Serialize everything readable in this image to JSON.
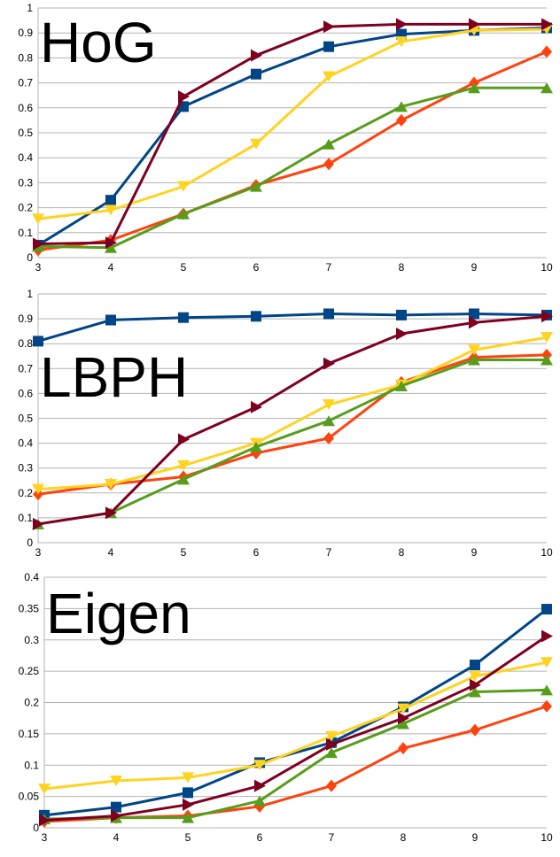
{
  "colors": {
    "blue": "#004586",
    "orange": "#ff420e",
    "yellow": "#ffd320",
    "green": "#579d1c",
    "maroon": "#7e0021",
    "grid": "#b3b3b3"
  },
  "chart_data": [
    {
      "type": "line",
      "title": "HoG",
      "x": [
        3,
        4,
        5,
        6,
        7,
        8,
        9,
        10
      ],
      "ylim": [
        0,
        1
      ],
      "yticks": [
        0,
        0.1,
        0.2,
        0.3,
        0.4,
        0.5,
        0.6,
        0.7,
        0.8,
        0.9,
        1
      ],
      "ytick_labels": [
        "0",
        "0.1",
        "0.2",
        "0.3",
        "0.4",
        "0.5",
        "0.6",
        "0.7",
        "0.8",
        "0.9",
        "1"
      ],
      "grid": true,
      "series": [
        {
          "color": "blue",
          "marker": "square",
          "values": [
            0.05,
            0.23,
            0.605,
            0.735,
            0.845,
            0.895,
            0.91,
            0.92
          ]
        },
        {
          "color": "orange",
          "marker": "diamond",
          "values": [
            0.03,
            0.07,
            0.175,
            0.29,
            0.375,
            0.55,
            0.7,
            0.825
          ]
        },
        {
          "color": "yellow",
          "marker": "triangle-down",
          "values": [
            0.155,
            0.19,
            0.285,
            0.455,
            0.725,
            0.865,
            0.91,
            0.915
          ]
        },
        {
          "color": "green",
          "marker": "triangle-up",
          "values": [
            0.045,
            0.04,
            0.175,
            0.285,
            0.455,
            0.605,
            0.68,
            0.68
          ]
        },
        {
          "color": "maroon",
          "marker": "triangle-right",
          "values": [
            0.055,
            0.06,
            0.645,
            0.81,
            0.925,
            0.935,
            0.935,
            0.935
          ]
        }
      ]
    },
    {
      "type": "line",
      "title": "LBPH",
      "x": [
        3,
        4,
        5,
        6,
        7,
        8,
        9,
        10
      ],
      "ylim": [
        0,
        1
      ],
      "yticks": [
        0,
        0.1,
        0.2,
        0.3,
        0.4,
        0.5,
        0.6,
        0.7,
        0.8,
        0.9,
        1
      ],
      "ytick_labels": [
        "0",
        "0.1",
        "0.2",
        "0.3",
        "0.4",
        "0.5",
        "0.6",
        "0.7",
        "0.8",
        "0.9",
        "1"
      ],
      "grid": true,
      "series": [
        {
          "color": "blue",
          "marker": "square",
          "values": [
            0.81,
            0.895,
            0.905,
            0.91,
            0.92,
            0.915,
            0.92,
            0.915
          ]
        },
        {
          "color": "orange",
          "marker": "diamond",
          "values": [
            0.195,
            0.235,
            0.265,
            0.36,
            0.42,
            0.645,
            0.745,
            0.755
          ]
        },
        {
          "color": "yellow",
          "marker": "triangle-down",
          "values": [
            0.215,
            0.235,
            0.31,
            0.4,
            0.555,
            0.635,
            0.775,
            0.825
          ]
        },
        {
          "color": "green",
          "marker": "triangle-up",
          "values": [
            0.075,
            0.12,
            0.255,
            0.385,
            0.49,
            0.63,
            0.735,
            0.735
          ]
        },
        {
          "color": "maroon",
          "marker": "triangle-right",
          "values": [
            0.075,
            0.12,
            0.415,
            0.545,
            0.72,
            0.84,
            0.885,
            0.91
          ]
        }
      ]
    },
    {
      "type": "line",
      "title": "Eigen",
      "x": [
        3,
        4,
        5,
        6,
        7,
        8,
        9,
        10
      ],
      "ylim": [
        0,
        0.4
      ],
      "yticks": [
        0,
        0.05,
        0.1,
        0.15,
        0.2,
        0.25,
        0.3,
        0.35,
        0.4
      ],
      "ytick_labels": [
        "0",
        "0.05",
        "0.1",
        "0.15",
        "0.2",
        "0.25",
        "0.3",
        "0.35",
        "0.4"
      ],
      "grid": true,
      "series": [
        {
          "color": "blue",
          "marker": "square",
          "values": [
            0.02,
            0.033,
            0.056,
            0.104,
            0.136,
            0.193,
            0.26,
            0.349
          ]
        },
        {
          "color": "orange",
          "marker": "diamond",
          "values": [
            0.01,
            0.016,
            0.019,
            0.034,
            0.067,
            0.127,
            0.156,
            0.194
          ]
        },
        {
          "color": "yellow",
          "marker": "triangle-down",
          "values": [
            0.062,
            0.075,
            0.08,
            0.1,
            0.146,
            0.19,
            0.242,
            0.264
          ]
        },
        {
          "color": "green",
          "marker": "triangle-up",
          "values": [
            0.014,
            0.016,
            0.016,
            0.043,
            0.12,
            0.166,
            0.217,
            0.22
          ]
        },
        {
          "color": "maroon",
          "marker": "triangle-right",
          "values": [
            0.012,
            0.019,
            0.037,
            0.067,
            0.133,
            0.175,
            0.228,
            0.306
          ]
        }
      ]
    }
  ]
}
